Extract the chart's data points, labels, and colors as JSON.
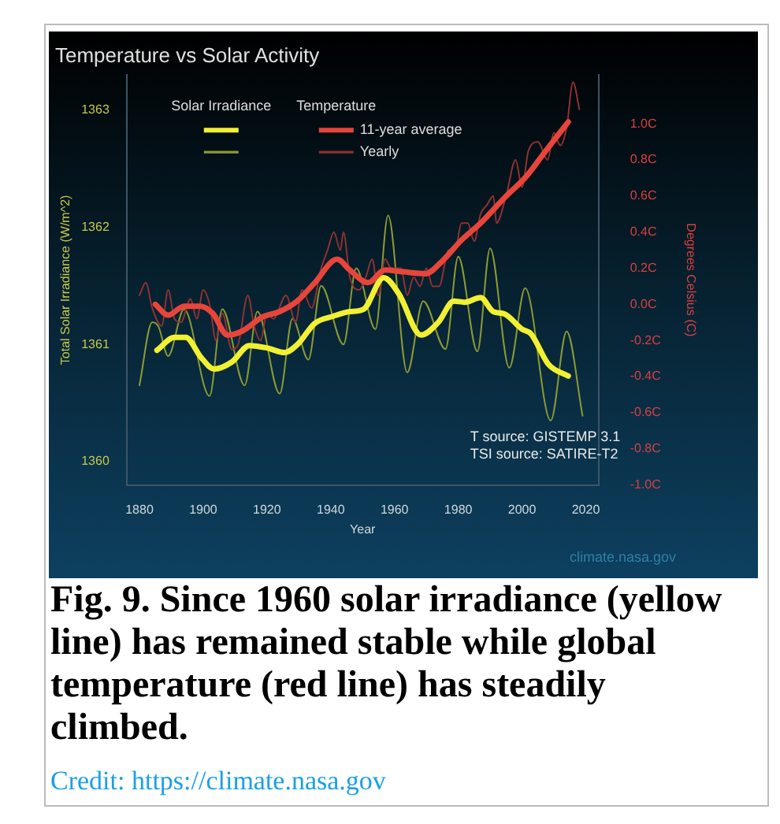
{
  "chart_data": {
    "type": "line",
    "title": "Temperature vs Solar Activity",
    "xlabel": "Year",
    "ylabel": "Total Solar Irradiance (W/m^2)",
    "y2label": "Degrees Celsius (C)",
    "xlim": [
      1876,
      2024
    ],
    "xticks": [
      1880,
      1900,
      1920,
      1940,
      1960,
      1980,
      2000,
      2020
    ],
    "ylim": [
      1359.8,
      1363.3
    ],
    "yticks": [
      1360,
      1361,
      1362,
      1363
    ],
    "y2lim": [
      -1.0,
      1.27
    ],
    "y2ticks": [
      {
        "value": -1.0,
        "label": "-1.0C"
      },
      {
        "value": -0.8,
        "label": "-0.8C"
      },
      {
        "value": -0.6,
        "label": "-0.6C"
      },
      {
        "value": -0.4,
        "label": "-0.4C"
      },
      {
        "value": -0.2,
        "label": "-0.2C"
      },
      {
        "value": 0,
        "label": "0.0C"
      },
      {
        "value": 0.2,
        "label": "0.2C"
      },
      {
        "value": 0.4,
        "label": "0.4C"
      },
      {
        "value": 0.6,
        "label": "0.6C"
      },
      {
        "value": 0.8,
        "label": "0.8C"
      },
      {
        "value": 1.0,
        "label": "1.0C"
      }
    ],
    "legend": "top",
    "annotations": [
      "Solar Irradiance",
      "Temperature",
      "T source: GISTEMP 3.1",
      "TSI source: SATIRE-T2",
      "climate.nasa.gov",
      "Fig. 9. Since 1960 solar irradiance (yellow line) has remained stable while global temperature (red line) has steadily climbed.",
      "Credit: https://climate.nasa.gov"
    ],
    "series": [
      {
        "color": "#8c9a34",
        "axis": "y",
        "x": [
          1880,
          1884,
          1886,
          1889,
          1894,
          1902,
          1906,
          1913,
          1917,
          1924,
          1928,
          1933,
          1937,
          1944,
          1948,
          1954,
          1958,
          1964,
          1969,
          1976,
          1980,
          1986,
          1990,
          1996,
          2001,
          2009,
          2014,
          2019
        ],
        "values": [
          1360.65,
          1361.19,
          1361.15,
          1360.9,
          1361.3,
          1360.56,
          1361.3,
          1360.65,
          1361.28,
          1360.58,
          1361.22,
          1360.87,
          1361.5,
          1361.0,
          1361.65,
          1361.13,
          1362.1,
          1360.76,
          1361.37,
          1360.96,
          1361.75,
          1360.94,
          1361.82,
          1360.8,
          1361.48,
          1360.35,
          1361.11,
          1360.39
        ]
      },
      {
        "name": "Yearly",
        "color": "#8e3232",
        "axis": "y2",
        "x": [
          1880,
          1882,
          1884,
          1887,
          1889,
          1891,
          1893,
          1896,
          1898,
          1900,
          1902,
          1904,
          1906,
          1909,
          1911,
          1914,
          1916,
          1918,
          1920,
          1922,
          1926,
          1929,
          1931,
          1934,
          1937,
          1939,
          1941,
          1943,
          1944,
          1946,
          1949,
          1951,
          1953,
          1955,
          1957,
          1959,
          1962,
          1964,
          1966,
          1968,
          1970,
          1972,
          1974,
          1977,
          1979,
          1981,
          1983,
          1985,
          1987,
          1989,
          1991,
          1992,
          1995,
          1998,
          2000,
          2002,
          2005,
          2008,
          2010,
          2012,
          2014,
          2016,
          2018
        ],
        "values": [
          0.05,
          0.12,
          -0.02,
          -0.12,
          0.08,
          -0.08,
          -0.1,
          0.03,
          -0.08,
          0.08,
          0.0,
          -0.2,
          -0.05,
          -0.25,
          -0.22,
          0.05,
          -0.12,
          -0.2,
          -0.05,
          -0.08,
          0.05,
          -0.1,
          0.08,
          -0.02,
          0.2,
          0.3,
          0.4,
          0.3,
          0.4,
          0.15,
          0.08,
          0.15,
          0.25,
          0.05,
          0.25,
          0.2,
          0.2,
          0.05,
          0.15,
          0.1,
          0.2,
          0.1,
          0.1,
          0.3,
          0.3,
          0.45,
          0.45,
          0.35,
          0.5,
          0.55,
          0.6,
          0.45,
          0.6,
          0.8,
          0.65,
          0.85,
          0.9,
          0.8,
          0.95,
          0.88,
          0.98,
          1.23,
          1.08
        ]
      },
      {
        "color": "#f2f032",
        "axis": "y",
        "x": [
          1885.5,
          1891,
          1894.5,
          1899.3,
          1903.4,
          1909,
          1914.5,
          1920,
          1925.5,
          1929.6,
          1935,
          1940.7,
          1946,
          1950.3,
          1956.6,
          1961.4,
          1968.3,
          1973.8,
          1978.6,
          1982,
          1987,
          1991,
          1994.5,
          2000,
          2002.8,
          2008.3,
          2014.5
        ],
        "values": [
          1360.95,
          1361.06,
          1361.06,
          1360.89,
          1360.79,
          1360.85,
          1360.99,
          1360.97,
          1360.93,
          1361.0,
          1361.18,
          1361.24,
          1361.28,
          1361.3,
          1361.57,
          1361.43,
          1361.08,
          1361.19,
          1361.37,
          1361.36,
          1361.4,
          1361.28,
          1361.26,
          1361.13,
          1361.09,
          1360.83,
          1360.73
        ]
      },
      {
        "name": "11-year average",
        "color": "#e8453a",
        "axis": "y2",
        "x": [
          1885,
          1889,
          1894,
          1899,
          1903,
          1907.6,
          1912,
          1918.6,
          1924,
          1929.6,
          1935,
          1942,
          1946,
          1951.7,
          1957,
          1962.8,
          1969.7,
          1975,
          1980.7,
          1987.6,
          1994.5,
          2001.4,
          2007,
          2014.5
        ],
        "values": [
          0.0,
          -0.06,
          -0.01,
          -0.01,
          -0.05,
          -0.17,
          -0.15,
          -0.07,
          -0.04,
          0.02,
          0.12,
          0.25,
          0.19,
          0.12,
          0.19,
          0.18,
          0.17,
          0.24,
          0.35,
          0.46,
          0.59,
          0.71,
          0.84,
          1.01
        ]
      }
    ]
  }
}
